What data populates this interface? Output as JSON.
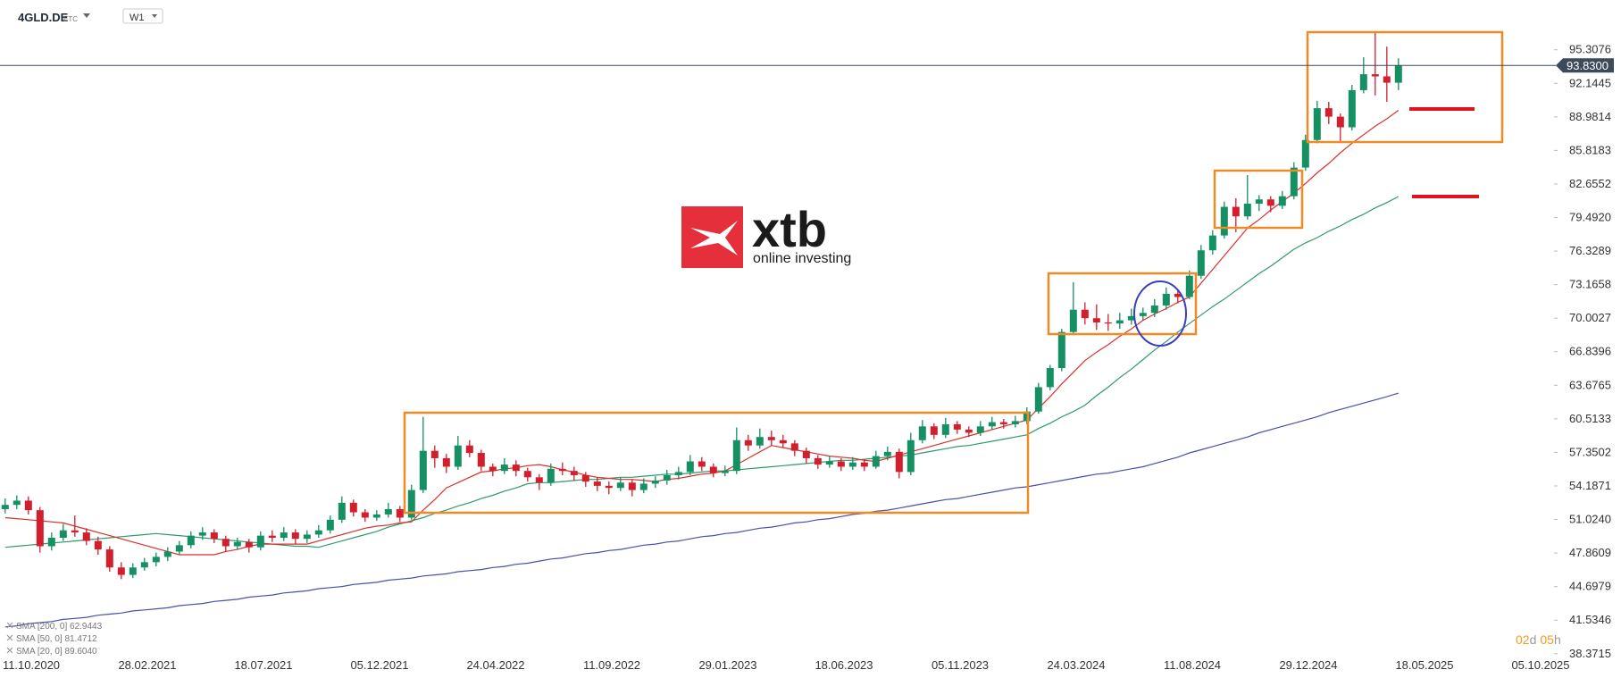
{
  "header": {
    "symbol": "4GLD.DE",
    "asset_class": "ETC",
    "timeframe": "W1"
  },
  "logo": {
    "brand": "xtb",
    "tagline": "online investing"
  },
  "countdown": [
    "02",
    "d",
    "05",
    "h"
  ],
  "chart_data": {
    "type": "candlestick",
    "up_color": "#149062",
    "down_color": "#d21e2d",
    "grid": false,
    "ylim": [
      36.5,
      100
    ],
    "yticks": [
      95.3076,
      92.1445,
      88.9814,
      85.8183,
      82.6552,
      {
        "value": 79.492,
        "label": "79.4920"
      },
      76.3289,
      73.1658,
      70.0027,
      66.8396,
      63.6765,
      60.5133,
      57.3502,
      54.1871,
      {
        "value": 51.024,
        "label": "51.0240"
      },
      47.8609,
      44.6979,
      41.5346,
      38.3715
    ],
    "xticks": [
      "11.10.2020",
      "28.02.2021",
      "18.07.2021",
      "05.12.2021",
      "24.04.2022",
      "11.09.2022",
      "29.01.2023",
      "18.06.2023",
      "05.11.2023",
      "24.03.2024",
      "11.08.2024",
      "29.12.2024",
      "18.05.2025",
      "05.10.2025"
    ],
    "last_price": {
      "value": 93.83,
      "label": "93.8300"
    },
    "ohlc": [
      [
        52.0,
        53.0,
        51.6,
        52.4
      ],
      [
        52.4,
        53.3,
        52.0,
        52.8
      ],
      [
        52.8,
        53.2,
        51.5,
        51.9
      ],
      [
        51.9,
        52.2,
        47.9,
        48.5
      ],
      [
        48.5,
        49.8,
        48.1,
        49.3
      ],
      [
        49.3,
        50.6,
        49.0,
        50.0
      ],
      [
        50.0,
        51.4,
        49.4,
        49.8
      ],
      [
        49.8,
        50.2,
        48.6,
        49.0
      ],
      [
        49.0,
        49.4,
        47.7,
        48.2
      ],
      [
        48.2,
        48.5,
        46.1,
        46.5
      ],
      [
        46.5,
        47.0,
        45.4,
        45.8
      ],
      [
        45.8,
        46.9,
        45.5,
        46.5
      ],
      [
        46.5,
        47.4,
        46.2,
        47.0
      ],
      [
        47.0,
        47.9,
        46.6,
        47.5
      ],
      [
        47.5,
        48.4,
        47.1,
        48.0
      ],
      [
        48.0,
        49.0,
        47.7,
        48.6
      ],
      [
        48.6,
        49.9,
        48.3,
        49.5
      ],
      [
        49.5,
        50.3,
        49.1,
        49.8
      ],
      [
        49.8,
        50.1,
        48.8,
        49.2
      ],
      [
        49.2,
        49.5,
        48.0,
        48.5
      ],
      [
        48.5,
        49.3,
        48.2,
        48.9
      ],
      [
        48.9,
        49.2,
        47.9,
        48.4
      ],
      [
        48.4,
        49.9,
        48.1,
        49.5
      ],
      [
        49.5,
        50.0,
        48.9,
        49.3
      ],
      [
        49.3,
        50.3,
        49.0,
        49.8
      ],
      [
        49.8,
        50.1,
        48.7,
        49.2
      ],
      [
        49.2,
        50.0,
        48.8,
        49.6
      ],
      [
        49.6,
        50.5,
        49.3,
        50.0
      ],
      [
        50.0,
        51.4,
        49.7,
        51.0
      ],
      [
        51.0,
        53.2,
        50.7,
        52.6
      ],
      [
        52.6,
        52.9,
        51.3,
        51.7
      ],
      [
        51.7,
        52.0,
        50.8,
        51.2
      ],
      [
        51.2,
        51.9,
        50.9,
        51.5
      ],
      [
        51.5,
        52.6,
        51.2,
        52.0
      ],
      [
        52.0,
        52.3,
        50.8,
        51.2
      ],
      [
        51.2,
        54.3,
        51.0,
        53.8
      ],
      [
        53.8,
        60.7,
        53.5,
        57.5
      ],
      [
        57.5,
        58.0,
        55.9,
        56.8
      ],
      [
        56.8,
        57.2,
        55.4,
        56.0
      ],
      [
        56.0,
        58.9,
        55.7,
        58.0
      ],
      [
        58.0,
        58.5,
        56.9,
        57.3
      ],
      [
        57.3,
        57.6,
        55.6,
        56.0
      ],
      [
        56.0,
        56.3,
        55.1,
        55.6
      ],
      [
        55.6,
        56.8,
        55.3,
        56.2
      ],
      [
        56.2,
        56.6,
        55.1,
        55.6
      ],
      [
        55.6,
        55.9,
        54.6,
        55.0
      ],
      [
        55.0,
        55.3,
        53.8,
        54.5
      ],
      [
        54.5,
        56.3,
        54.2,
        55.8
      ],
      [
        55.8,
        56.4,
        55.2,
        55.6
      ],
      [
        55.6,
        56.0,
        54.7,
        55.2
      ],
      [
        55.2,
        55.5,
        54.1,
        54.6
      ],
      [
        54.6,
        55.0,
        53.7,
        54.2
      ],
      [
        54.2,
        54.6,
        53.4,
        54.0
      ],
      [
        54.0,
        55.0,
        53.7,
        54.5
      ],
      [
        54.5,
        54.8,
        53.2,
        53.8
      ],
      [
        53.8,
        54.9,
        53.5,
        54.4
      ],
      [
        54.4,
        55.1,
        54.0,
        54.7
      ],
      [
        54.7,
        55.7,
        54.3,
        55.2
      ],
      [
        55.2,
        56.0,
        54.8,
        55.5
      ],
      [
        55.5,
        57.1,
        55.2,
        56.5
      ],
      [
        56.5,
        56.9,
        55.6,
        56.0
      ],
      [
        56.0,
        56.3,
        55.0,
        55.4
      ],
      [
        55.4,
        56.1,
        55.1,
        55.6
      ],
      [
        55.6,
        59.7,
        55.3,
        58.5
      ],
      [
        58.5,
        59.0,
        57.5,
        58.0
      ],
      [
        58.0,
        59.6,
        57.7,
        58.8
      ],
      [
        58.8,
        59.4,
        58.0,
        58.5
      ],
      [
        58.5,
        59.0,
        57.8,
        58.2
      ],
      [
        58.2,
        58.5,
        57.0,
        57.5
      ],
      [
        57.5,
        57.8,
        56.3,
        56.8
      ],
      [
        56.8,
        57.1,
        55.8,
        56.2
      ],
      [
        56.2,
        57.0,
        55.9,
        56.5
      ],
      [
        56.5,
        56.8,
        55.6,
        56.0
      ],
      [
        56.0,
        56.9,
        55.7,
        56.4
      ],
      [
        56.4,
        56.7,
        55.6,
        56.0
      ],
      [
        56.0,
        57.5,
        55.8,
        57.0
      ],
      [
        57.0,
        57.9,
        56.6,
        57.4
      ],
      [
        57.4,
        57.7,
        54.9,
        55.5
      ],
      [
        55.5,
        59.2,
        55.2,
        58.5
      ],
      [
        58.5,
        60.4,
        58.2,
        59.8
      ],
      [
        59.8,
        60.1,
        58.6,
        59.0
      ],
      [
        59.0,
        60.6,
        58.7,
        60.0
      ],
      [
        60.0,
        60.3,
        59.1,
        59.5
      ],
      [
        59.5,
        59.8,
        58.8,
        59.2
      ],
      [
        59.2,
        60.3,
        58.9,
        59.8
      ],
      [
        59.8,
        60.7,
        59.5,
        60.2
      ],
      [
        60.2,
        60.5,
        59.6,
        60.0
      ],
      [
        60.0,
        60.8,
        59.7,
        60.3
      ],
      [
        60.3,
        61.6,
        60.0,
        61.2
      ],
      [
        61.2,
        63.9,
        61.0,
        63.5
      ],
      [
        63.5,
        65.6,
        63.2,
        65.3
      ],
      [
        65.3,
        69.0,
        65.0,
        68.7
      ],
      [
        68.7,
        73.4,
        68.4,
        70.8
      ],
      [
        70.8,
        71.5,
        69.4,
        70.0
      ],
      [
        70.0,
        71.3,
        68.9,
        69.6
      ],
      [
        69.6,
        70.4,
        68.8,
        69.5
      ],
      [
        69.5,
        70.5,
        69.0,
        69.8
      ],
      [
        69.8,
        70.9,
        69.4,
        70.2
      ],
      [
        70.2,
        71.0,
        69.8,
        70.5
      ],
      [
        70.5,
        71.8,
        70.1,
        71.2
      ],
      [
        71.2,
        72.9,
        70.8,
        72.3
      ],
      [
        72.3,
        72.7,
        71.4,
        72.0
      ],
      [
        72.0,
        74.5,
        71.8,
        74.0
      ],
      [
        74.0,
        76.9,
        73.7,
        76.4
      ],
      [
        76.4,
        78.3,
        76.0,
        77.8
      ],
      [
        77.8,
        81.0,
        77.5,
        80.5
      ],
      [
        80.5,
        81.3,
        78.1,
        79.6
      ],
      [
        79.6,
        83.5,
        79.3,
        80.8
      ],
      [
        80.8,
        81.6,
        80.1,
        81.2
      ],
      [
        81.2,
        81.5,
        80.0,
        80.6
      ],
      [
        80.6,
        82.0,
        80.3,
        81.5
      ],
      [
        81.5,
        84.7,
        81.2,
        84.2
      ],
      [
        84.2,
        87.3,
        83.9,
        86.8
      ],
      [
        86.8,
        90.5,
        86.5,
        89.8
      ],
      [
        89.8,
        90.4,
        88.3,
        89.0
      ],
      [
        89.0,
        89.3,
        86.7,
        88.0
      ],
      [
        88.0,
        92.0,
        87.7,
        91.5
      ],
      [
        91.5,
        94.6,
        91.2,
        93.0
      ],
      [
        93.0,
        97.0,
        91.0,
        92.8
      ],
      [
        92.8,
        95.6,
        90.4,
        92.2
      ],
      [
        92.2,
        94.5,
        91.5,
        93.83
      ]
    ],
    "series": [
      {
        "name": "SMA [200, 0] 62.9443",
        "color": "#4a4fa8",
        "values": [
          40.9,
          41.0,
          41.2,
          41.3,
          41.4,
          41.6,
          41.7,
          41.8,
          42.0,
          42.1,
          42.2,
          42.4,
          42.5,
          42.6,
          42.7,
          42.9,
          43.0,
          43.1,
          43.3,
          43.4,
          43.5,
          43.7,
          43.8,
          43.9,
          44.1,
          44.2,
          44.3,
          44.5,
          44.6,
          44.7,
          44.9,
          45.0,
          45.1,
          45.3,
          45.4,
          45.5,
          45.7,
          45.8,
          45.9,
          46.1,
          46.2,
          46.3,
          46.5,
          46.6,
          46.8,
          46.9,
          47.1,
          47.3,
          47.4,
          47.6,
          47.8,
          47.9,
          48.1,
          48.2,
          48.4,
          48.6,
          48.7,
          48.9,
          49.0,
          49.2,
          49.4,
          49.5,
          49.7,
          49.8,
          50.0,
          50.2,
          50.3,
          50.5,
          50.7,
          50.8,
          51.0,
          51.1,
          51.3,
          51.5,
          51.6,
          51.8,
          51.9,
          52.1,
          52.3,
          52.5,
          52.7,
          52.9,
          53.0,
          53.2,
          53.4,
          53.6,
          53.8,
          54.0,
          54.1,
          54.3,
          54.5,
          54.7,
          54.9,
          55.1,
          55.3,
          55.4,
          55.6,
          55.8,
          56.0,
          56.3,
          56.6,
          56.9,
          57.3,
          57.6,
          57.9,
          58.2,
          58.5,
          58.8,
          59.2,
          59.5,
          59.8,
          60.1,
          60.4,
          60.7,
          61.1,
          61.4,
          61.7,
          62.0,
          62.3,
          62.6,
          62.94
        ]
      },
      {
        "name": "SMA [50, 0] 81.4712",
        "color": "#2e9a6a",
        "values": [
          48.4,
          48.5,
          48.6,
          48.7,
          48.8,
          48.9,
          49.0,
          49.1,
          49.2,
          49.3,
          49.4,
          49.5,
          49.6,
          49.7,
          49.6,
          49.5,
          49.4,
          49.3,
          49.2,
          49.1,
          49.0,
          48.9,
          48.8,
          48.7,
          48.6,
          48.5,
          48.5,
          48.4,
          48.7,
          49.0,
          49.3,
          49.6,
          49.9,
          50.3,
          50.6,
          50.9,
          51.2,
          51.6,
          51.9,
          52.3,
          52.6,
          53.0,
          53.3,
          53.7,
          54.0,
          54.4,
          54.5,
          54.5,
          54.6,
          54.7,
          54.8,
          54.8,
          54.9,
          55.0,
          55.0,
          55.1,
          55.2,
          55.3,
          55.3,
          55.4,
          55.5,
          55.6,
          55.6,
          55.7,
          55.8,
          55.9,
          56.0,
          56.1,
          56.2,
          56.3,
          56.4,
          56.5,
          56.6,
          56.6,
          56.7,
          56.8,
          56.9,
          57.0,
          57.1,
          57.3,
          57.5,
          57.7,
          57.9,
          58.0,
          58.2,
          58.4,
          58.6,
          58.8,
          59.0,
          59.6,
          60.1,
          60.7,
          61.2,
          61.8,
          62.7,
          63.5,
          64.4,
          65.2,
          66.1,
          67.0,
          67.8,
          68.7,
          69.5,
          70.3,
          71.1,
          71.8,
          72.6,
          73.4,
          74.2,
          74.9,
          75.7,
          76.5,
          77.1,
          77.6,
          78.2,
          78.7,
          79.3,
          79.8,
          80.4,
          80.9,
          81.47
        ]
      },
      {
        "name": "SMA [20, 0] 89.6040",
        "color": "#d9302c",
        "values": [
          51.2,
          51.1,
          51.0,
          50.9,
          50.8,
          50.7,
          50.4,
          50.1,
          49.8,
          49.5,
          49.2,
          48.9,
          48.6,
          48.3,
          48.0,
          47.7,
          47.7,
          47.7,
          47.7,
          48.0,
          48.2,
          48.5,
          48.7,
          48.7,
          48.7,
          48.7,
          48.7,
          49.0,
          49.3,
          49.6,
          49.9,
          50.2,
          50.4,
          50.5,
          50.7,
          50.8,
          51.9,
          52.9,
          54.0,
          54.5,
          55.0,
          55.5,
          55.6,
          55.8,
          55.9,
          56.1,
          56.2,
          56.0,
          55.7,
          55.5,
          55.2,
          55.0,
          54.9,
          54.8,
          54.8,
          54.7,
          54.6,
          54.8,
          54.9,
          55.1,
          55.3,
          55.4,
          55.6,
          56.2,
          56.8,
          57.4,
          58.0,
          57.8,
          57.6,
          57.4,
          57.2,
          57.0,
          56.9,
          56.8,
          56.6,
          56.5,
          56.8,
          57.1,
          57.4,
          57.7,
          58.0,
          58.3,
          58.6,
          58.9,
          59.2,
          59.5,
          59.8,
          60.1,
          60.4,
          61.5,
          62.6,
          63.8,
          64.9,
          66.0,
          66.8,
          67.5,
          68.3,
          69.0,
          69.8,
          70.4,
          70.9,
          71.5,
          72.0,
          73.3,
          74.6,
          75.9,
          77.2,
          78.5,
          79.3,
          80.2,
          81.0,
          81.8,
          82.7,
          83.7,
          84.6,
          85.6,
          86.5,
          87.3,
          88.1,
          88.8,
          89.6
        ]
      }
    ]
  }
}
